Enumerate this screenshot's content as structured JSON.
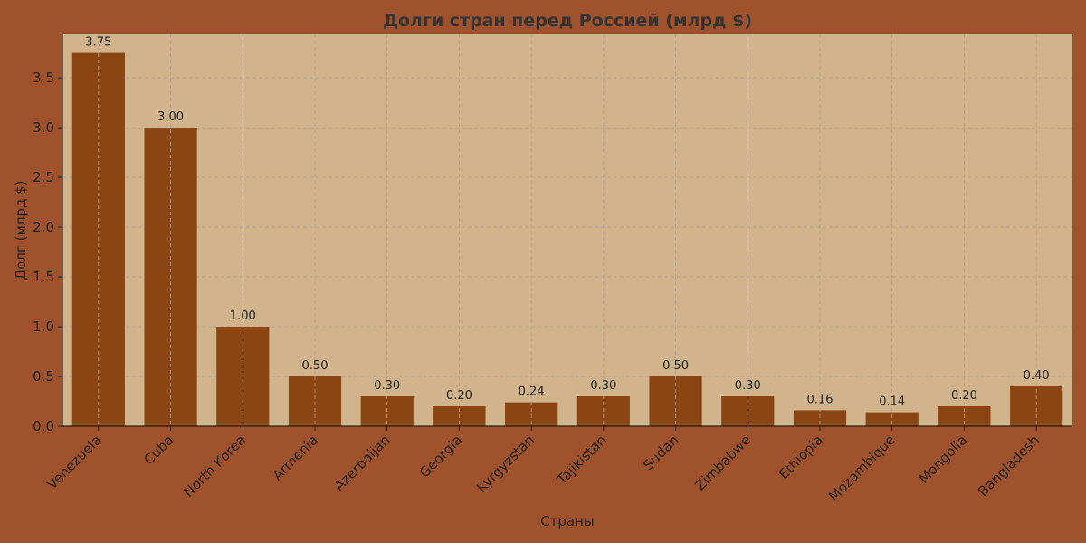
{
  "chart_data": {
    "type": "bar",
    "title": "Долги стран перед Россией (млрд $)",
    "xlabel": "Страны",
    "ylabel": "Долг (млрд $)",
    "categories": [
      "Venezuela",
      "Cuba",
      "North Korea",
      "Armenia",
      "Azerbaijan",
      "Georgia",
      "Kyrgyzstan",
      "Tajikistan",
      "Sudan",
      "Zimbabwe",
      "Ethiopia",
      "Mozambique",
      "Mongolia",
      "Bangladesh"
    ],
    "values": [
      3.75,
      3.0,
      1.0,
      0.5,
      0.3,
      0.2,
      0.24,
      0.3,
      0.5,
      0.3,
      0.16,
      0.14,
      0.2,
      0.4
    ],
    "value_labels": [
      "3.75",
      "3.00",
      "1.00",
      "0.50",
      "0.30",
      "0.20",
      "0.24",
      "0.30",
      "0.50",
      "0.30",
      "0.16",
      "0.14",
      "0.20",
      "0.40"
    ],
    "yticks": [
      0.0,
      0.5,
      1.0,
      1.5,
      2.0,
      2.5,
      3.0,
      3.5
    ],
    "ytick_labels": [
      "0.0",
      "0.5",
      "1.0",
      "1.5",
      "2.0",
      "2.5",
      "3.0",
      "3.5"
    ],
    "ylim": [
      0,
      3.9375
    ],
    "grid": true,
    "colors": {
      "figure_bg": "#a0522d",
      "plot_bg": "#d2b48c",
      "bar": "#8b4513",
      "grid": "#b0a090",
      "text": "#222222",
      "title": "#333333"
    }
  }
}
